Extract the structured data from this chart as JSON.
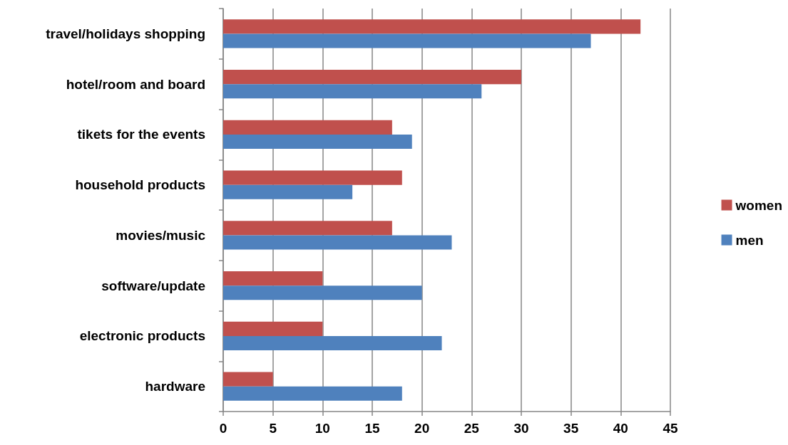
{
  "chart_data": {
    "type": "bar",
    "orientation": "horizontal",
    "categories": [
      "travel/holidays shopping",
      "hotel/room and board",
      "tikets for the events",
      "household products",
      "movies/music",
      "software/update",
      "electronic products",
      "hardware"
    ],
    "series": [
      {
        "name": "women",
        "color": "#c0504d",
        "values": [
          42,
          30,
          17,
          18,
          17,
          10,
          10,
          5
        ]
      },
      {
        "name": "men",
        "color": "#4f81bd",
        "values": [
          37,
          26,
          19,
          13,
          23,
          20,
          22,
          18
        ]
      }
    ],
    "xlim": [
      0,
      45
    ],
    "xticks": [
      0,
      5,
      10,
      15,
      20,
      25,
      30,
      35,
      40,
      45
    ],
    "grid": "x",
    "legend": "right"
  }
}
